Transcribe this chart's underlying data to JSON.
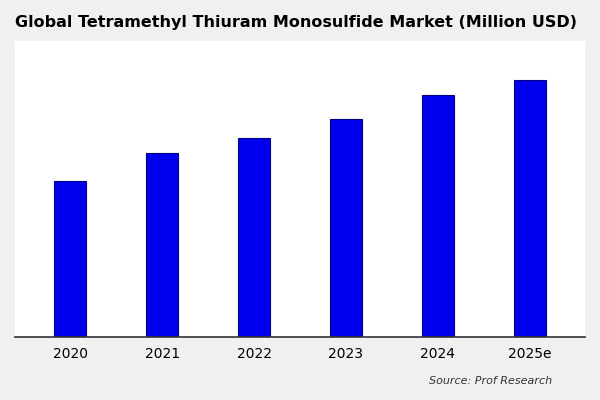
{
  "title": "Global Tetramethyl Thiuram Monosulfide Market (Million USD)",
  "categories": [
    "2020",
    "2021",
    "2022",
    "2023",
    "2024",
    "2025e"
  ],
  "values": [
    100,
    118,
    128,
    140,
    155,
    165
  ],
  "bar_color": "#0000EE",
  "bar_edge_color": "#000080",
  "bar_width": 0.35,
  "background_color": "#f0f0f0",
  "plot_bg_color": "#ffffff",
  "title_fontsize": 11.5,
  "tick_fontsize": 10,
  "source_text": "Source: Prof Research",
  "ylim": [
    0,
    190
  ]
}
